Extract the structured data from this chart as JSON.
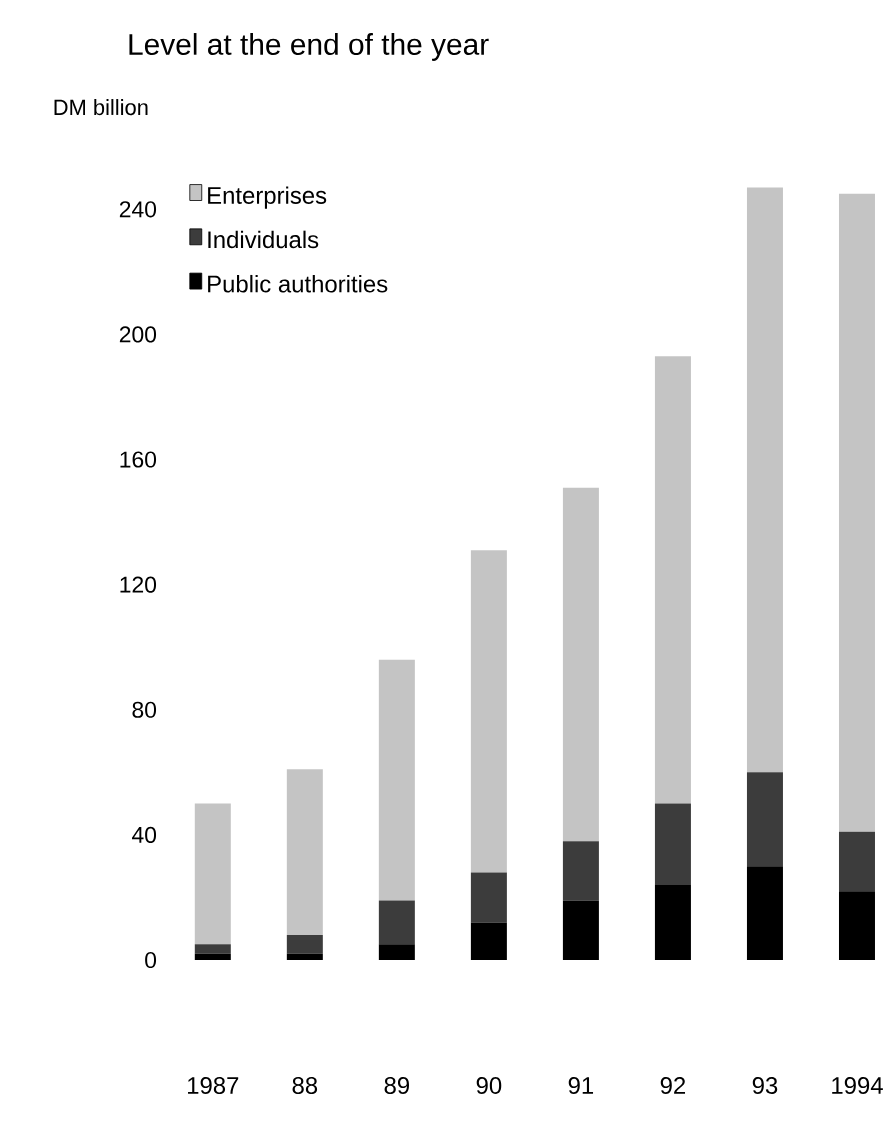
{
  "chart_data": {
    "type": "bar",
    "stacked": true,
    "title": "Level at the end of the year",
    "ylabel": "DM billion",
    "categories": [
      "1987",
      "88",
      "89",
      "90",
      "91",
      "92",
      "93",
      "1994"
    ],
    "series": [
      {
        "name": "Public authorities",
        "color": "#000000",
        "values": [
          2,
          2,
          5,
          12,
          19,
          24,
          30,
          22
        ]
      },
      {
        "name": "Individuals",
        "color": "#3c3c3c",
        "values": [
          3,
          6,
          14,
          16,
          19,
          26,
          30,
          19
        ]
      },
      {
        "name": "Enterprises",
        "color": "#c4c4c4",
        "values": [
          45,
          53,
          77,
          103,
          113,
          143,
          187,
          204
        ]
      }
    ],
    "ylim": [
      0,
      250
    ],
    "yticks": [
      0,
      40,
      80,
      120,
      160,
      200,
      240
    ],
    "legend": "top left"
  }
}
